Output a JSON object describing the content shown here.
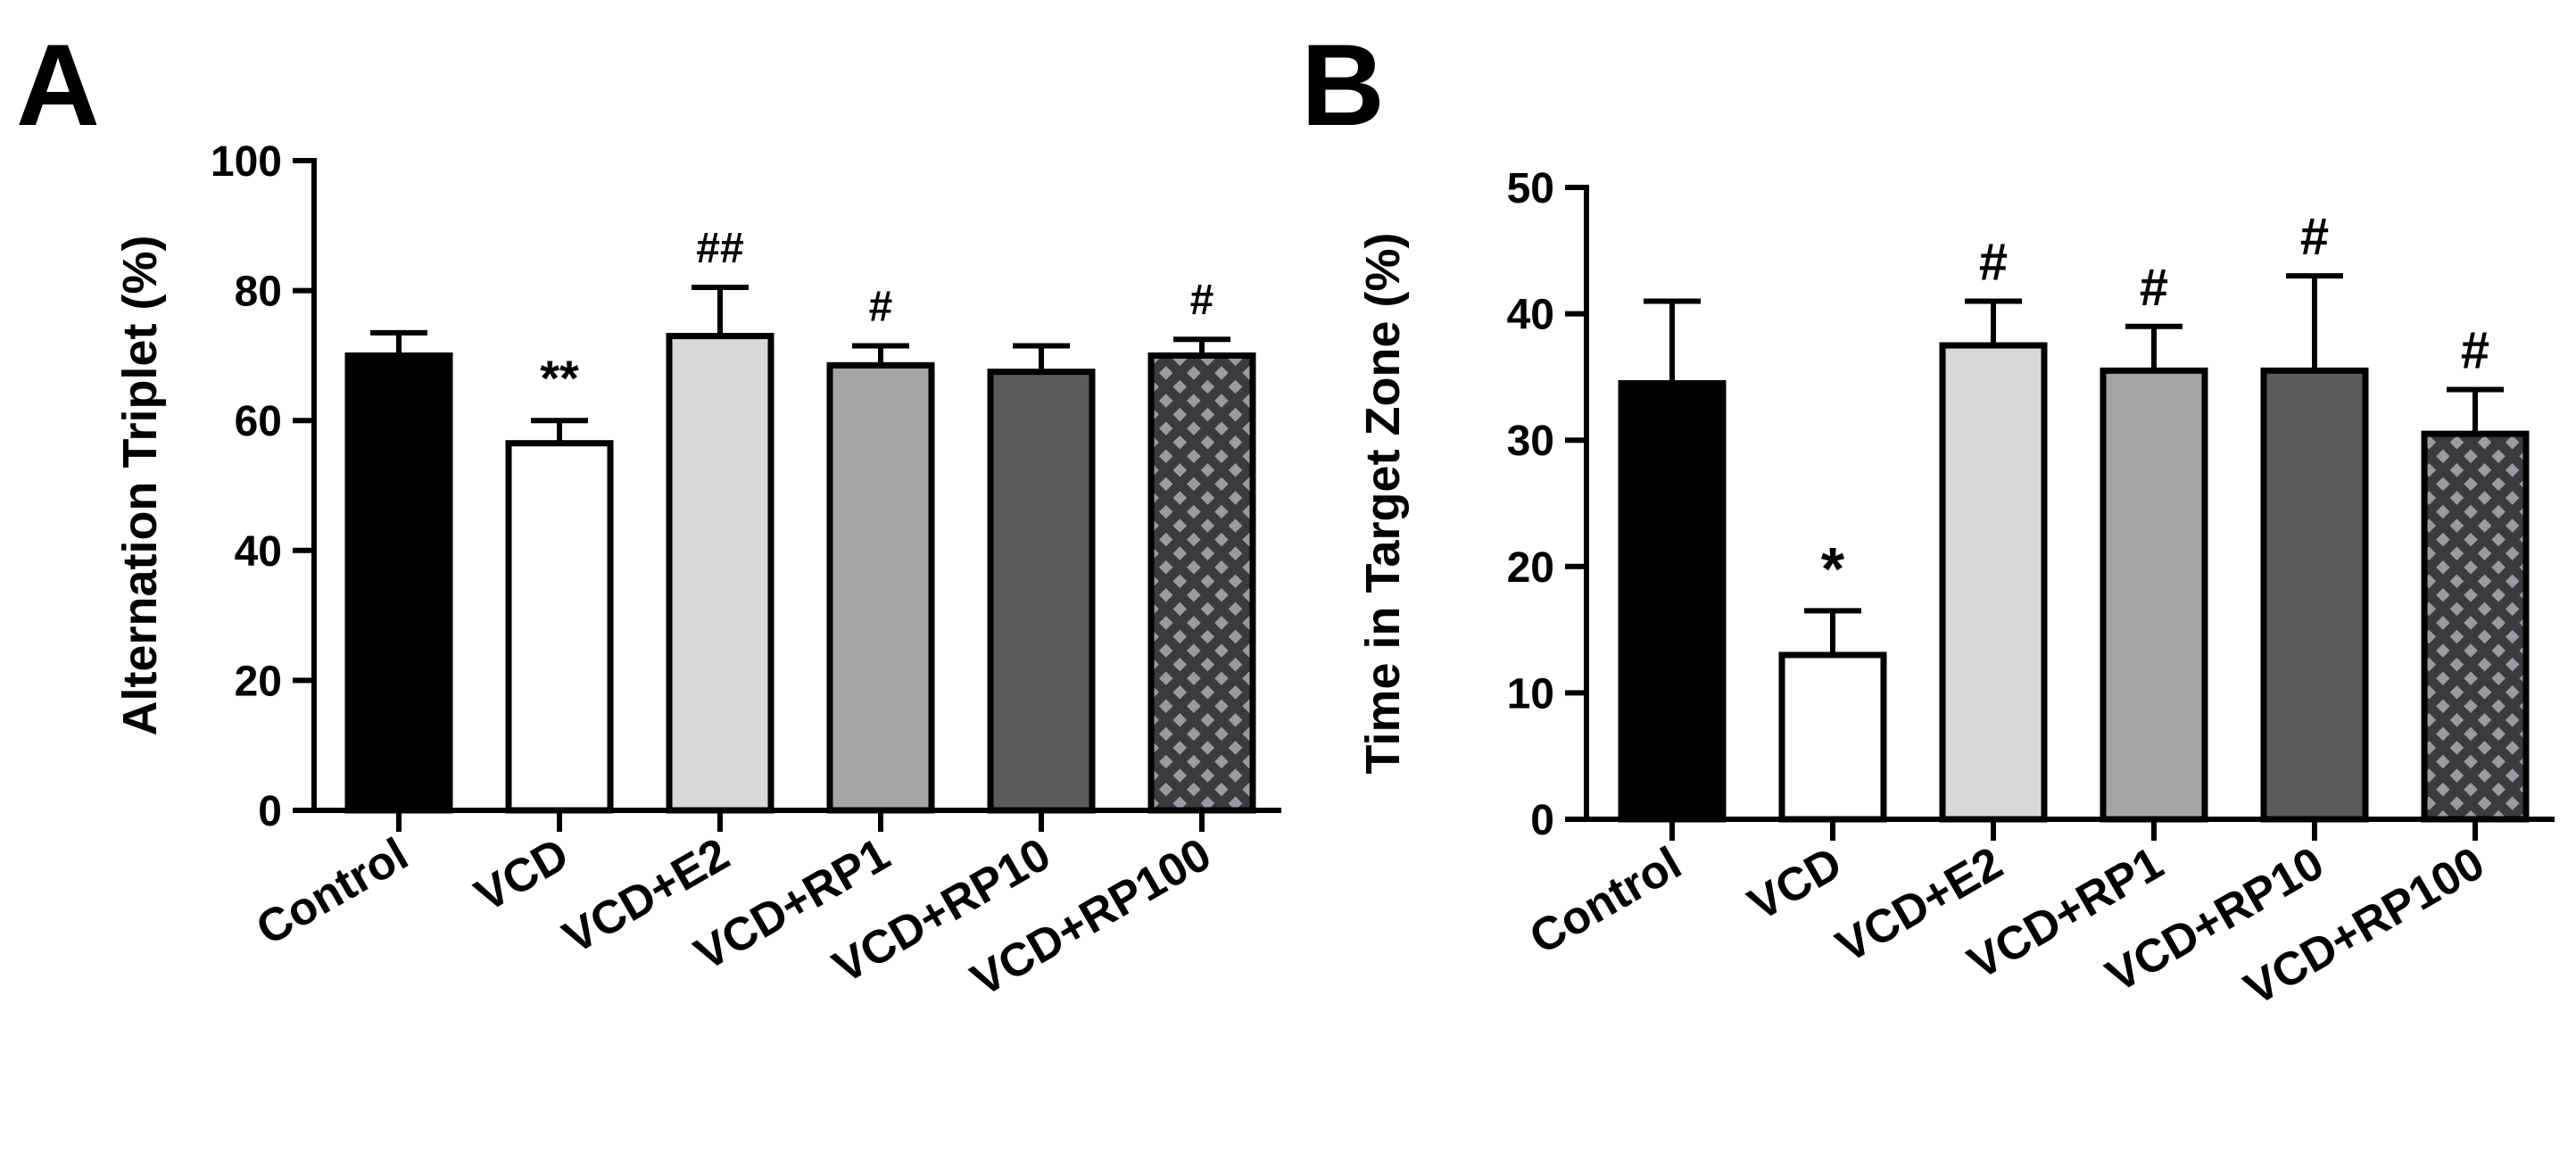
{
  "figure": {
    "panels": [
      "A",
      "B"
    ]
  },
  "chart_data": [
    {
      "type": "bar",
      "panel": "A",
      "categories": [
        "Control",
        "VCD",
        "VCD+E2",
        "VCD+RP1",
        "VCD+RP10",
        "VCD+RP100"
      ],
      "values": [
        70,
        56.5,
        73,
        68.5,
        67.5,
        70
      ],
      "errors": [
        3.5,
        3.5,
        7.5,
        3,
        4,
        2.5
      ],
      "significance": [
        "",
        "**",
        "##",
        "#",
        "",
        "#"
      ],
      "fills": [
        "solid-black",
        "white",
        "light-gray",
        "mid-gray",
        "dark-gray",
        "checker"
      ],
      "title": "",
      "xlabel": "",
      "ylabel": "Alternation Triplet (%)",
      "ylim": [
        0,
        100
      ],
      "yticks": [
        0,
        20,
        40,
        60,
        80,
        100
      ]
    },
    {
      "type": "bar",
      "panel": "B",
      "categories": [
        "Control",
        "VCD",
        "VCD+E2",
        "VCD+RP1",
        "VCD+RP10",
        "VCD+RP100"
      ],
      "values": [
        34.5,
        13,
        37.5,
        35.5,
        35.5,
        30.5
      ],
      "errors": [
        6.5,
        3.5,
        3.5,
        3.5,
        7.5,
        3.5
      ],
      "significance": [
        "",
        "*",
        "#",
        "#",
        "#",
        "#"
      ],
      "fills": [
        "solid-black",
        "white",
        "light-gray",
        "mid-gray",
        "dark-gray",
        "checker"
      ],
      "title": "",
      "xlabel": "",
      "ylabel": "Time in Target Zone (%)",
      "ylim": [
        0,
        50
      ],
      "yticks": [
        0,
        10,
        20,
        30,
        40,
        50
      ]
    }
  ],
  "colors": {
    "solid-black": "#000000",
    "white": "#ffffff",
    "light-gray": "#d9d9d9",
    "mid-gray": "#a5a5a8",
    "dark-gray": "#5b5b5b",
    "checker-bg": "#3a3a40",
    "checker-fg": "#9a9aa2"
  }
}
